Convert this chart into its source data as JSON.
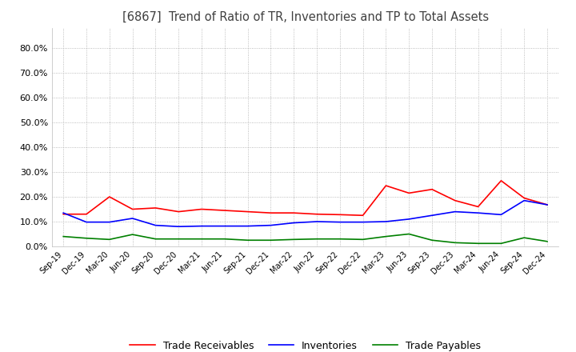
{
  "title": "[6867]  Trend of Ratio of TR, Inventories and TP to Total Assets",
  "ylim": [
    0.0,
    0.88
  ],
  "yticks": [
    0.0,
    0.1,
    0.2,
    0.3,
    0.4,
    0.5,
    0.6,
    0.7,
    0.8
  ],
  "x_labels": [
    "Sep-19",
    "Dec-19",
    "Mar-20",
    "Jun-20",
    "Sep-20",
    "Dec-20",
    "Mar-21",
    "Jun-21",
    "Sep-21",
    "Dec-21",
    "Mar-22",
    "Jun-22",
    "Sep-22",
    "Dec-22",
    "Mar-23",
    "Jun-23",
    "Sep-23",
    "Dec-23",
    "Mar-24",
    "Jun-24",
    "Sep-24",
    "Dec-24"
  ],
  "trade_receivables": [
    0.13,
    0.13,
    0.2,
    0.15,
    0.155,
    0.14,
    0.15,
    0.145,
    0.14,
    0.135,
    0.135,
    0.13,
    0.128,
    0.125,
    0.245,
    0.215,
    0.23,
    0.185,
    0.16,
    0.265,
    0.195,
    0.168
  ],
  "inventories": [
    0.135,
    0.098,
    0.098,
    0.113,
    0.085,
    0.08,
    0.082,
    0.082,
    0.082,
    0.085,
    0.095,
    0.1,
    0.098,
    0.098,
    0.1,
    0.11,
    0.125,
    0.14,
    0.135,
    0.128,
    0.185,
    0.168
  ],
  "trade_payables": [
    0.04,
    0.033,
    0.028,
    0.048,
    0.03,
    0.03,
    0.03,
    0.03,
    0.025,
    0.025,
    0.028,
    0.03,
    0.03,
    0.028,
    0.04,
    0.05,
    0.025,
    0.015,
    0.012,
    0.012,
    0.035,
    0.02
  ],
  "tr_color": "#FF0000",
  "inv_color": "#0000FF",
  "tp_color": "#008000",
  "background_color": "#FFFFFF",
  "grid_color": "#AAAAAA",
  "title_color": "#404040",
  "legend_labels": [
    "Trade Receivables",
    "Inventories",
    "Trade Payables"
  ]
}
